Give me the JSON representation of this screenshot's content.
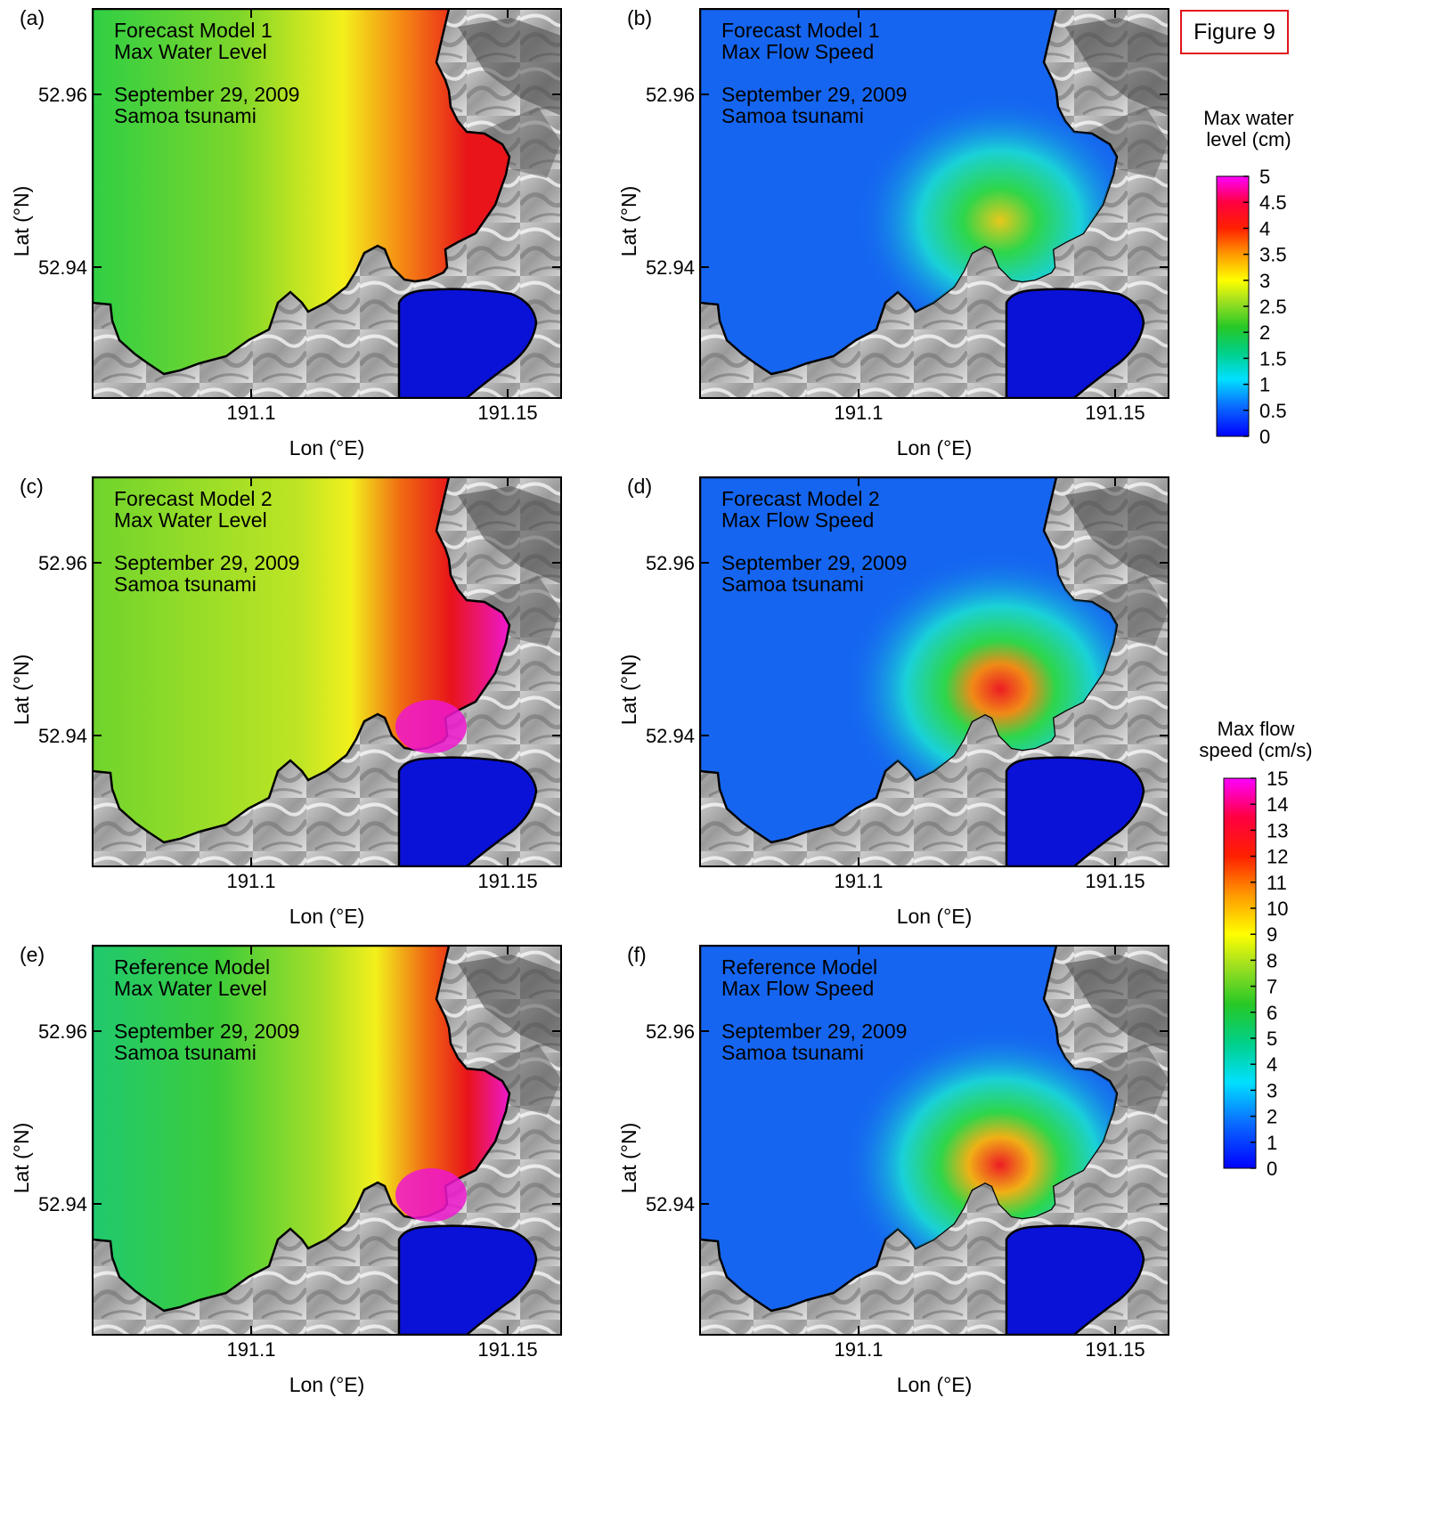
{
  "figure_label": "Figure 9",
  "axes": {
    "x_label": "Lon (°E)",
    "y_label": "Lat (°N)",
    "x_ticks": [
      "191.1",
      "191.15"
    ],
    "y_ticks": [
      "52.96",
      "52.94"
    ]
  },
  "panels": [
    {
      "letter": "(a)",
      "line1": "Forecast Model 1",
      "line2": "Max Water Level",
      "line3": "September 29, 2009",
      "line4": "Samoa tsunami",
      "type": "level",
      "variant": "a"
    },
    {
      "letter": "(b)",
      "line1": "Forecast Model 1",
      "line2": "Max Flow Speed",
      "line3": "September 29, 2009",
      "line4": "Samoa tsunami",
      "type": "speed",
      "variant": "b"
    },
    {
      "letter": "(c)",
      "line1": "Forecast Model 2",
      "line2": "Max Water Level",
      "line3": "September 29, 2009",
      "line4": "Samoa tsunami",
      "type": "level",
      "variant": "c"
    },
    {
      "letter": "(d)",
      "line1": "Forecast Model 2",
      "line2": "Max Flow Speed",
      "line3": "September 29, 2009",
      "line4": "Samoa tsunami",
      "type": "speed",
      "variant": "d"
    },
    {
      "letter": "(e)",
      "line1": "Reference Model",
      "line2": "Max Water Level",
      "line3": "September 29, 2009",
      "line4": "Samoa tsunami",
      "type": "level",
      "variant": "e"
    },
    {
      "letter": "(f)",
      "line1": "Reference Model",
      "line2": "Max Flow Speed",
      "line3": "September 29, 2009",
      "line4": "Samoa tsunami",
      "type": "speed",
      "variant": "f"
    }
  ],
  "colorbar_level": {
    "title_line1": "Max water",
    "title_line2": "level (cm)",
    "ticks": [
      "5",
      "4.5",
      "4",
      "3.5",
      "3",
      "2.5",
      "2",
      "1.5",
      "1",
      "0.5",
      "0"
    ]
  },
  "colorbar_speed": {
    "title_line1": "Max flow",
    "title_line2": "speed (cm/s)",
    "ticks": [
      "15",
      "14",
      "13",
      "12",
      "11",
      "10",
      "9",
      "8",
      "7",
      "6",
      "5",
      "4",
      "3",
      "2",
      "1",
      "0"
    ]
  },
  "colors": {
    "land_light": "#e6e6e6",
    "land_dark": "#3a3a3a",
    "deep_blue": "#0a12d8",
    "figure_label_red": "#e0141c"
  }
}
